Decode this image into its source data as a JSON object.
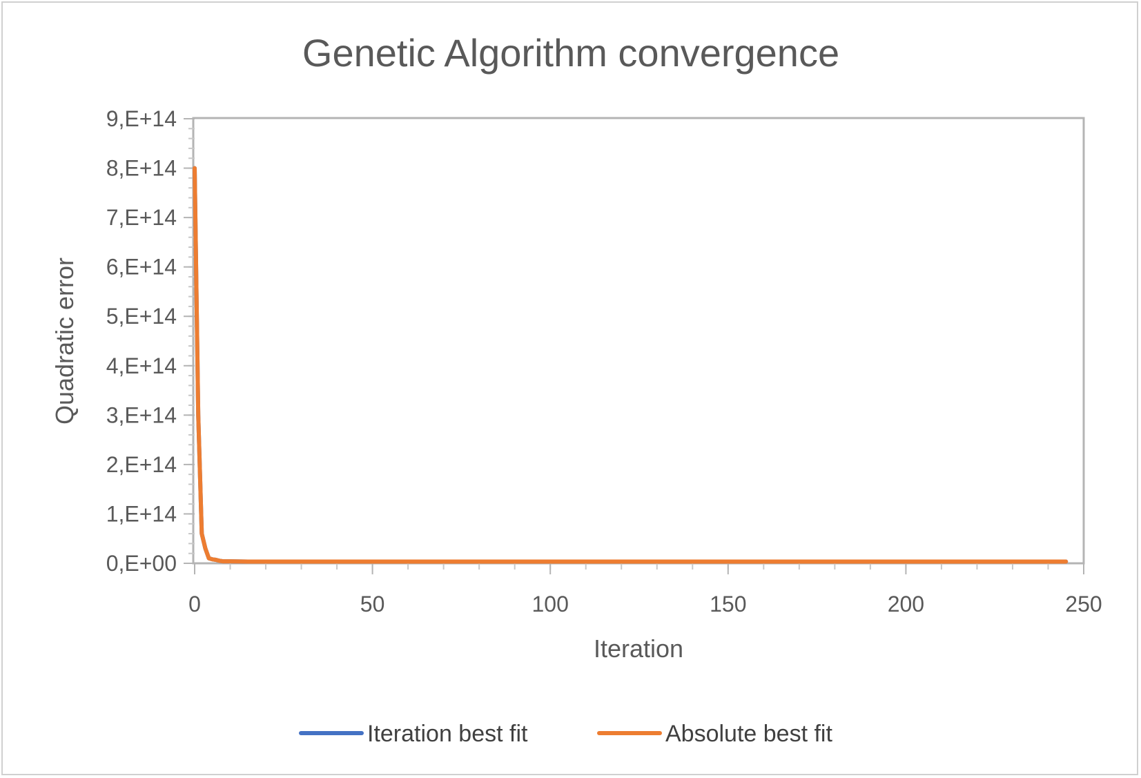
{
  "chart_data": {
    "type": "line",
    "title": "Genetic Algorithm convergence",
    "xlabel": "Iteration",
    "ylabel": "Quadratic error",
    "xlim": [
      0,
      250
    ],
    "ylim": [
      0,
      900000000000000.0
    ],
    "x_ticks": [
      "0",
      "50",
      "100",
      "150",
      "200",
      "250"
    ],
    "y_ticks": [
      "0,E+00",
      "1,E+14",
      "2,E+14",
      "3,E+14",
      "4,E+14",
      "5,E+14",
      "6,E+14",
      "7,E+14",
      "8,E+14",
      "9,E+14"
    ],
    "x_tick_values": [
      0,
      50,
      100,
      150,
      200,
      250
    ],
    "y_tick_values": [
      0,
      100000000000000.0,
      200000000000000.0,
      300000000000000.0,
      400000000000000.0,
      500000000000000.0,
      600000000000000.0,
      700000000000000.0,
      800000000000000.0,
      900000000000000.0
    ],
    "grid": false,
    "legend_position": "bottom",
    "series": [
      {
        "name": "Iteration best fit",
        "color": "#4472C4",
        "x": [
          0,
          1,
          2,
          3,
          4,
          5,
          6,
          7,
          8,
          10,
          15,
          20,
          50,
          100,
          150,
          200,
          245
        ],
        "values": [
          800000000000000.0,
          300000000000000.0,
          60000000000000.0,
          30000000000000.0,
          10000000000000.0,
          8000000000000.0,
          7000000000000.0,
          5000000000000.0,
          4000000000000.0,
          4000000000000.0,
          3500000000000.0,
          3500000000000.0,
          3500000000000.0,
          3500000000000.0,
          3500000000000.0,
          3500000000000.0,
          3500000000000.0
        ]
      },
      {
        "name": "Absolute best fit",
        "color": "#ED7D31",
        "x": [
          0,
          1,
          2,
          3,
          4,
          5,
          6,
          7,
          8,
          10,
          15,
          20,
          50,
          100,
          150,
          200,
          245
        ],
        "values": [
          800000000000000.0,
          300000000000000.0,
          60000000000000.0,
          30000000000000.0,
          10000000000000.0,
          8000000000000.0,
          7000000000000.0,
          5000000000000.0,
          4000000000000.0,
          4000000000000.0,
          3500000000000.0,
          3500000000000.0,
          3500000000000.0,
          3500000000000.0,
          3500000000000.0,
          3500000000000.0,
          3500000000000.0
        ]
      }
    ]
  }
}
